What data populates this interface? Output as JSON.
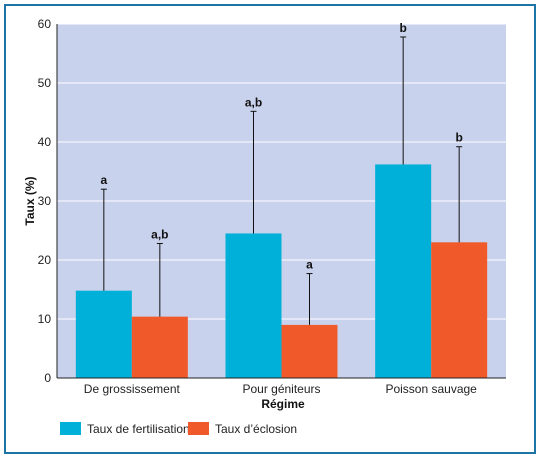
{
  "chart_data": {
    "type": "bar",
    "xlabel": "Régime",
    "ylabel": "Taux (%)",
    "ylim": [
      0,
      60
    ],
    "yticks": [
      0,
      10,
      20,
      30,
      40,
      50,
      60
    ],
    "grid": true,
    "legend_position": "bottom-left",
    "categories": [
      "De grossissement",
      "Pour géniteurs",
      "Poisson sauvage"
    ],
    "series": [
      {
        "name": "Taux de fertilisation",
        "color": "#00b0d8",
        "values": [
          14.8,
          24.5,
          36.2
        ],
        "error_upper": [
          32.0,
          45.2,
          57.8
        ],
        "significance": [
          "a",
          "a,b",
          "b"
        ]
      },
      {
        "name": "Taux d’éclosion",
        "color": "#f05a2a",
        "values": [
          10.4,
          9.0,
          23.0
        ],
        "error_upper": [
          22.8,
          17.7,
          39.2
        ],
        "significance": [
          "a,b",
          "a",
          "b"
        ]
      }
    ],
    "colors": {
      "plot_background": "#c9d2ec",
      "grid": "#ffffff",
      "frame": "#1d74a6"
    }
  }
}
